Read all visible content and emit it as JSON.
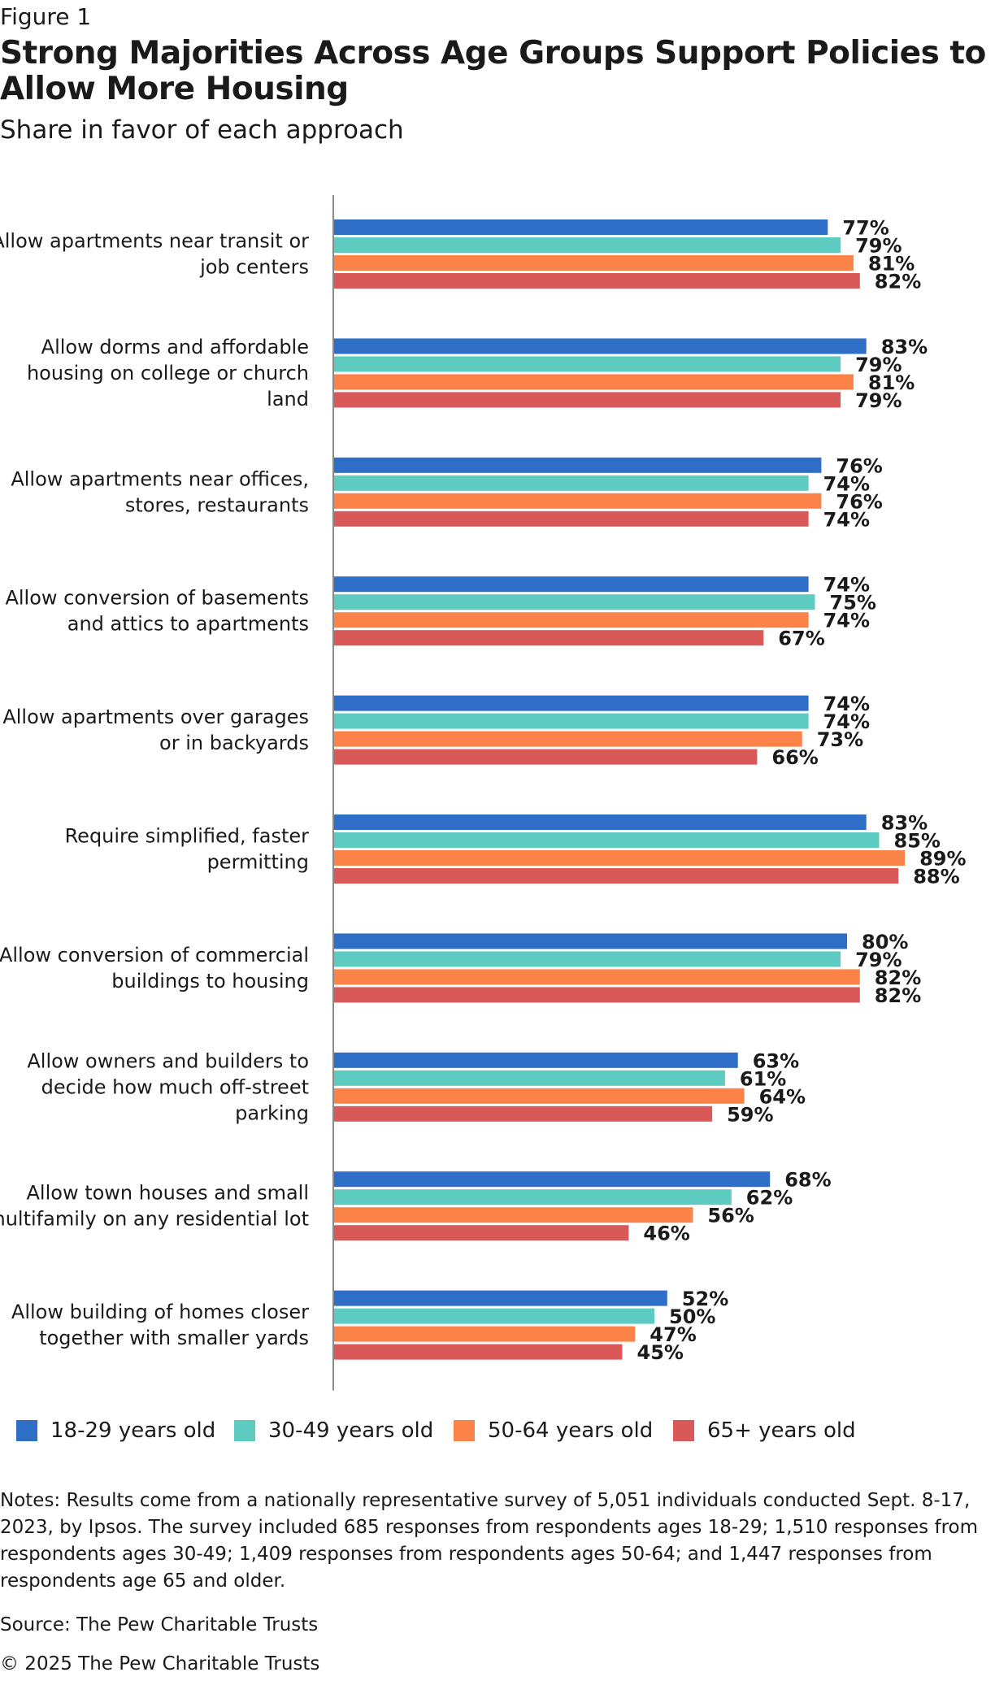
{
  "figure_label": "Figure 1",
  "title": "Strong Majorities Across Age Groups Support Policies to Allow More Housing",
  "subtitle": "Share in favor of each approach",
  "notes": "Notes: Results come from a nationally representative survey of 5,051 individuals conducted Sept. 8-17, 2023, by Ipsos. The survey included 685 responses from respondents ages 18-29; 1,510 responses from respondents ages 30-49; 1,409 responses from respondents ages 50-64; and 1,447 responses from respondents age 65 and older.",
  "source": "Source: The Pew Charitable Trusts",
  "copyright": "© 2025 The Pew Charitable Trusts",
  "chart_data": {
    "type": "bar",
    "orientation": "horizontal",
    "value_suffix": "%",
    "xlim": [
      0,
      100
    ],
    "grid": false,
    "legend_position": "bottom",
    "categories": [
      "Allow apartments near transit or job centers",
      "Allow dorms and affordable housing on college or church land",
      "Allow apartments near offices, stores, restaurants",
      "Allow conversion of basements and attics to apartments",
      "Allow apartments over garages or in backyards",
      "Require simplified, faster permitting",
      "Allow conversion of commercial buildings to housing",
      "Allow owners and builders to decide how much off-street parking",
      "Allow town houses and small multifamily on any residential lot",
      "Allow building of homes closer together with smaller yards"
    ],
    "category_lines": [
      [
        "Allow apartments near transit or",
        "job centers"
      ],
      [
        "Allow dorms and affordable",
        "housing on college or church",
        "land"
      ],
      [
        "Allow apartments near offices,",
        "stores, restaurants"
      ],
      [
        "Allow conversion of basements",
        "and attics to apartments"
      ],
      [
        "Allow apartments over garages",
        "or in backyards"
      ],
      [
        "Require simplified, faster",
        "permitting"
      ],
      [
        "Allow conversion of commercial",
        "buildings to housing"
      ],
      [
        "Allow owners and builders to",
        "decide how much off-street",
        "parking"
      ],
      [
        "Allow town houses and small",
        "multifamily on any residential lot"
      ],
      [
        "Allow building of homes closer",
        "together with smaller yards"
      ]
    ],
    "series": [
      {
        "name": "18-29 years old",
        "color": "#2e6ec6",
        "values": [
          77,
          83,
          76,
          74,
          74,
          83,
          80,
          63,
          68,
          52
        ]
      },
      {
        "name": "30-49 years old",
        "color": "#5ecbc0",
        "values": [
          79,
          79,
          74,
          75,
          74,
          85,
          79,
          61,
          62,
          50
        ]
      },
      {
        "name": "50-64 years old",
        "color": "#fb8348",
        "values": [
          81,
          81,
          76,
          74,
          73,
          89,
          82,
          64,
          56,
          47
        ]
      },
      {
        "name": "65+ years old",
        "color": "#d95858",
        "values": [
          82,
          79,
          74,
          67,
          66,
          88,
          82,
          59,
          46,
          45
        ]
      }
    ]
  }
}
